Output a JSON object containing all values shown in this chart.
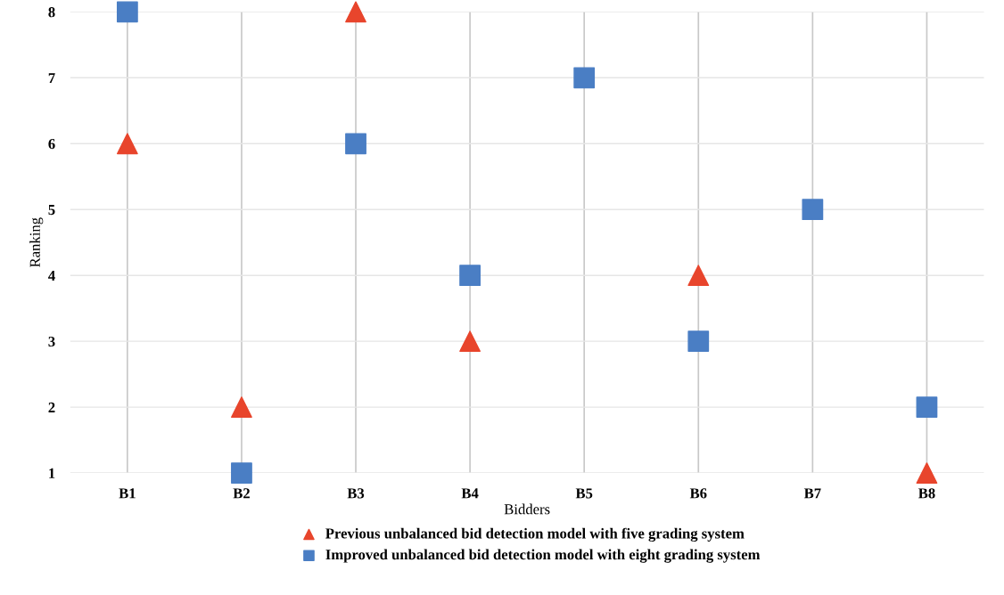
{
  "chart_data": {
    "type": "scatter",
    "xlabel": "Bidders",
    "ylabel": "Ranking",
    "categories": [
      "B1",
      "B2",
      "B3",
      "B4",
      "B5",
      "B6",
      "B7",
      "B8"
    ],
    "series": [
      {
        "name": "Previous unbalanced bid detection model with five grading system",
        "color": "#e8452c",
        "marker": "triangle",
        "values": [
          6,
          2,
          8,
          3,
          null,
          4,
          null,
          1
        ]
      },
      {
        "name": "Improved unbalanced bid detection model with eight grading system",
        "color": "#4a7ec4",
        "marker": "square",
        "values": [
          8,
          1,
          6,
          4,
          7,
          3,
          5,
          2
        ]
      }
    ],
    "ylim": [
      1,
      8
    ],
    "yticks": [
      1,
      2,
      3,
      4,
      5,
      6,
      7,
      8
    ],
    "grid": true,
    "legend": "bottom"
  }
}
